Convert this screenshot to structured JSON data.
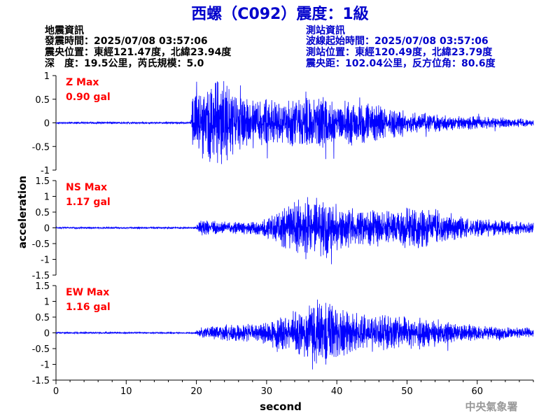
{
  "chart_data": {
    "type": "line",
    "title": "西螺（C092）震度：1級",
    "xlabel": "second",
    "ylabel": "acceleration",
    "xlim": [
      0,
      68
    ],
    "xticks": [
      0,
      10,
      20,
      30,
      40,
      50,
      60
    ],
    "event_info": {
      "heading": "地震資訊",
      "time_line": "發震時間：2025/07/08 03:57:06",
      "epicenter_line": "震央位置：東經121.47度，北緯23.94度",
      "depth_line": "深　度：19.5公里，芮氏規模：5.0"
    },
    "station_info": {
      "heading": "測站資訊",
      "wave_start_line": "波線起始時間：2025/07/08 03:57:06",
      "station_line": "測站位置：東經120.49度，北緯23.79度",
      "distance_line": "震央距：102.04公里，反方位角：80.6度"
    },
    "series": [
      {
        "name": "Z Max",
        "max_label": "0.90 gal",
        "max_gal": 0.9,
        "ylim": [
          -1,
          1
        ],
        "yticks": [
          -1,
          -0.5,
          0,
          0.5,
          1
        ],
        "onset_s": 19.3,
        "envelope": [
          [
            0,
            0.015
          ],
          [
            19.2,
            0.015
          ],
          [
            19.5,
            0.55
          ],
          [
            21,
            0.6
          ],
          [
            23.5,
            0.75
          ],
          [
            24.5,
            0.6
          ],
          [
            26,
            0.42
          ],
          [
            32,
            0.35
          ],
          [
            36,
            0.4
          ],
          [
            38.5,
            0.45
          ],
          [
            40,
            0.3
          ],
          [
            43,
            0.35
          ],
          [
            46,
            0.28
          ],
          [
            50,
            0.18
          ],
          [
            56,
            0.12
          ],
          [
            62,
            0.09
          ],
          [
            68,
            0.06
          ]
        ],
        "seed": 11
      },
      {
        "name": "NS Max",
        "max_label": "1.17 gal",
        "max_gal": 1.17,
        "ylim": [
          -1.5,
          1.5
        ],
        "yticks": [
          -1.5,
          -1,
          -0.5,
          0,
          0.5,
          1,
          1.5
        ],
        "onset_s": 20,
        "envelope": [
          [
            0,
            0.02
          ],
          [
            19.8,
            0.02
          ],
          [
            20.5,
            0.2
          ],
          [
            24,
            0.14
          ],
          [
            29,
            0.16
          ],
          [
            33,
            0.55
          ],
          [
            35,
            0.7
          ],
          [
            37.5,
            0.85
          ],
          [
            40,
            0.55
          ],
          [
            44,
            0.45
          ],
          [
            48,
            0.4
          ],
          [
            51.5,
            0.55
          ],
          [
            55,
            0.35
          ],
          [
            60,
            0.22
          ],
          [
            64,
            0.18
          ],
          [
            68,
            0.12
          ]
        ],
        "seed": 23
      },
      {
        "name": "EW Max",
        "max_label": "1.16 gal",
        "max_gal": 1.16,
        "ylim": [
          -1.5,
          1.5
        ],
        "yticks": [
          -1.5,
          -1,
          -0.5,
          0,
          0.5,
          1,
          1.5
        ],
        "onset_s": 20,
        "envelope": [
          [
            0,
            0.02
          ],
          [
            19.8,
            0.02
          ],
          [
            20.5,
            0.12
          ],
          [
            24,
            0.2
          ],
          [
            29,
            0.22
          ],
          [
            33,
            0.45
          ],
          [
            36,
            0.65
          ],
          [
            38,
            0.85
          ],
          [
            41,
            0.55
          ],
          [
            45,
            0.45
          ],
          [
            50,
            0.38
          ],
          [
            55,
            0.28
          ],
          [
            60,
            0.18
          ],
          [
            64,
            0.14
          ],
          [
            68,
            0.12
          ]
        ],
        "seed": 37
      }
    ]
  },
  "watermark": "中央氣象署",
  "colors": {
    "trace": "#0000ff",
    "station_text": "#0000cc",
    "title": "#0000cc",
    "series_label": "#ff0000",
    "axis": "#000000"
  }
}
